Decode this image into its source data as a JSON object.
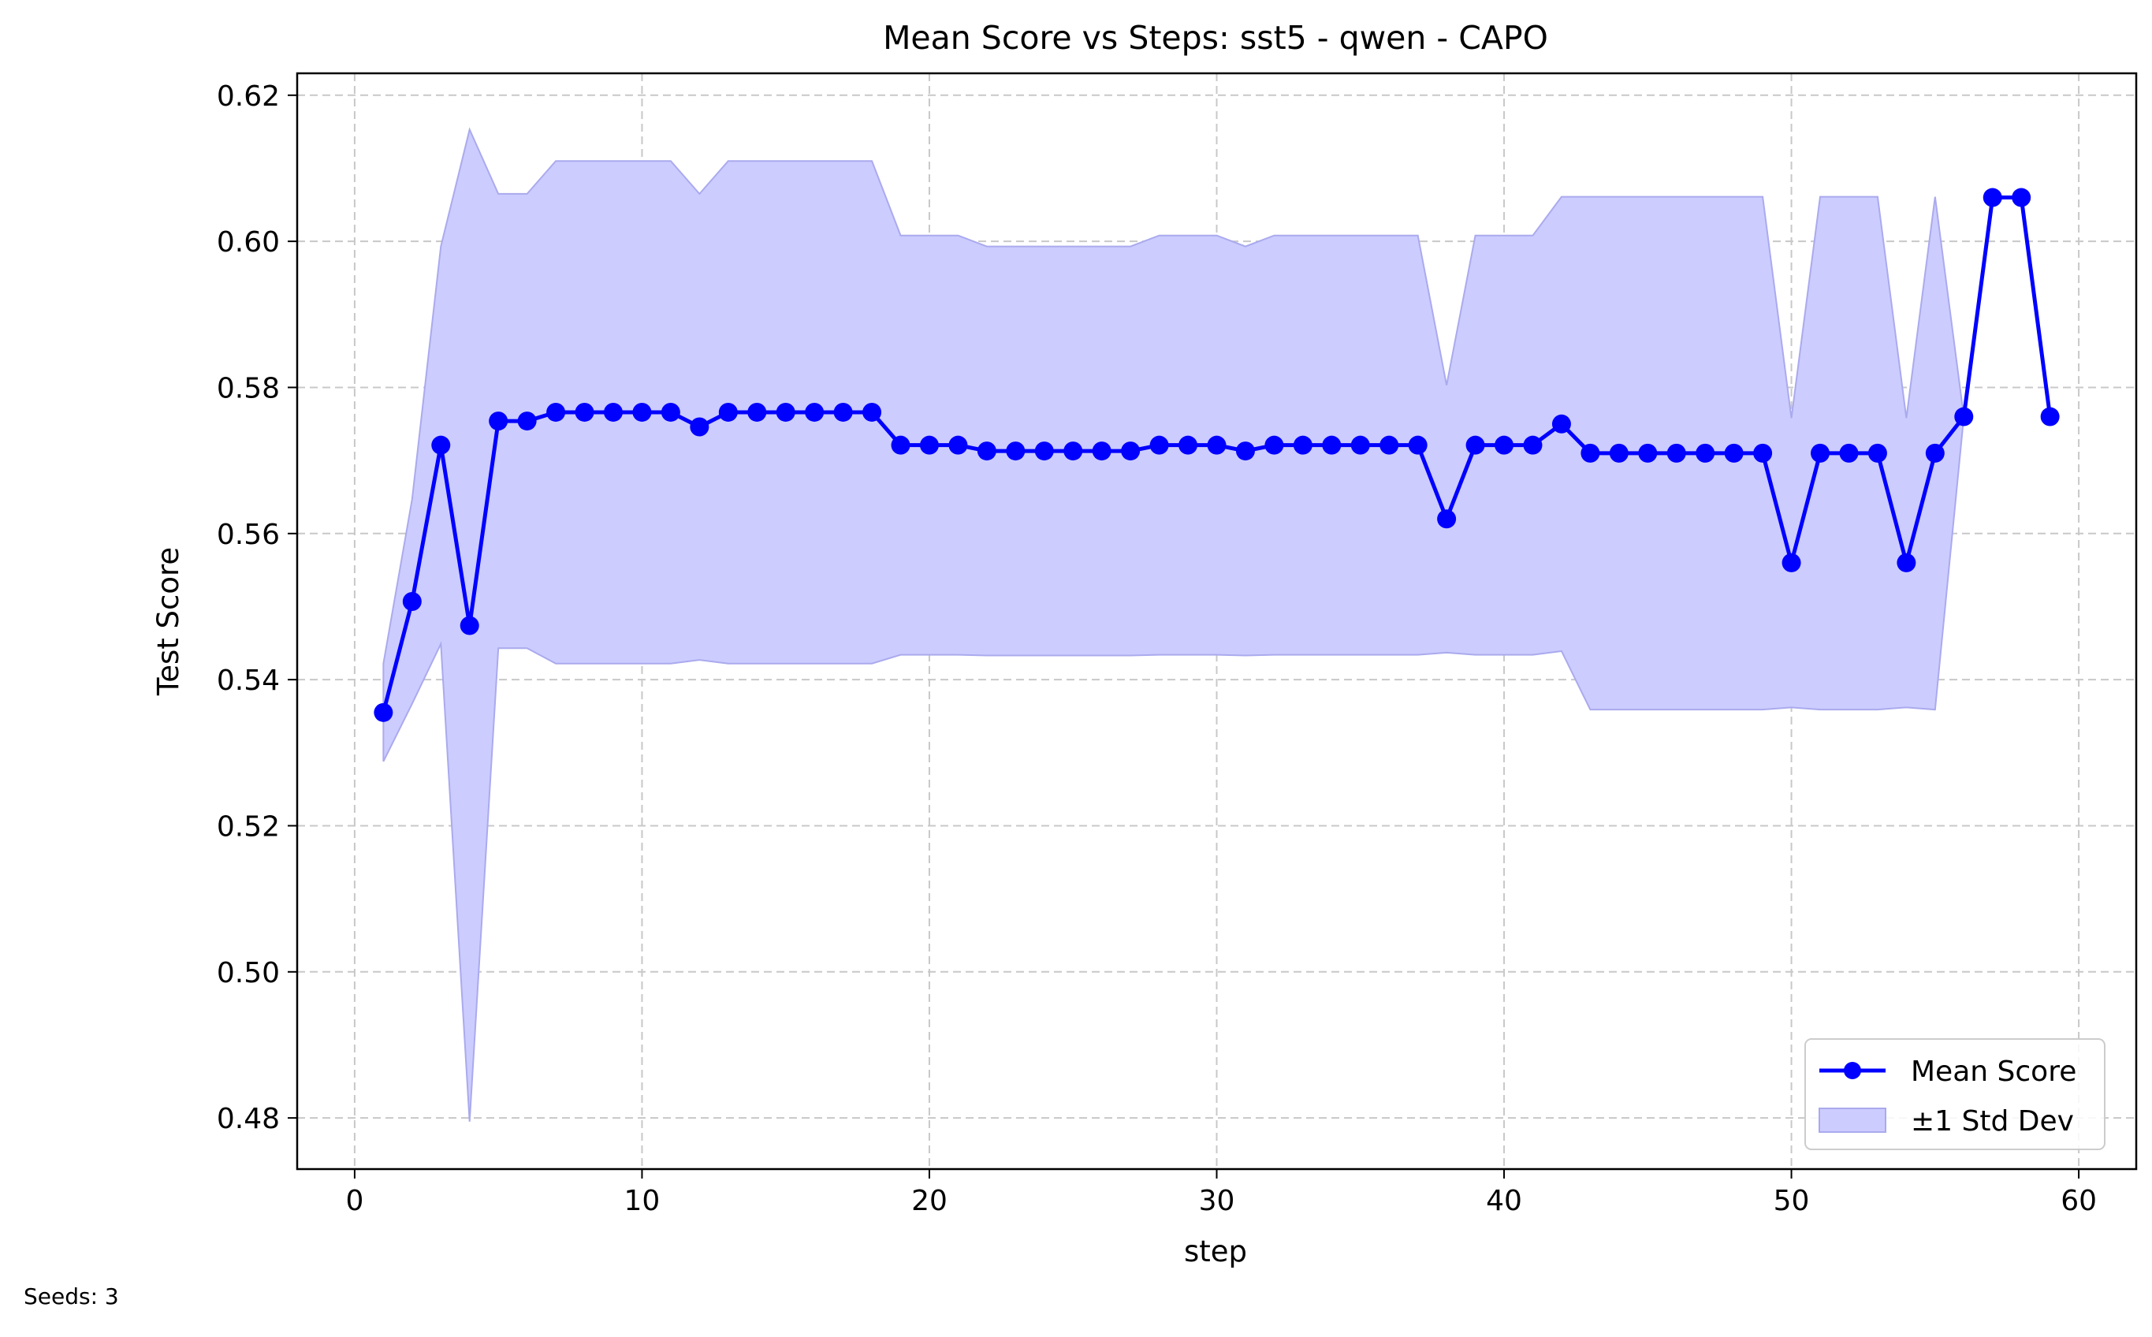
{
  "chart_data": {
    "type": "line",
    "title": "Mean Score vs Steps: sst5 - qwen - CAPO",
    "xlabel": "step",
    "ylabel": "Test Score",
    "xlim": [
      -2,
      62
    ],
    "ylim": [
      0.473,
      0.623
    ],
    "xticks": [
      0,
      10,
      20,
      30,
      40,
      50,
      60
    ],
    "yticks": [
      0.48,
      0.5,
      0.52,
      0.54,
      0.56,
      0.58,
      0.6,
      0.62
    ],
    "grid": true,
    "legend_position": "bottom-right",
    "x": [
      1,
      2,
      3,
      4,
      5,
      6,
      7,
      8,
      9,
      10,
      11,
      12,
      13,
      14,
      15,
      16,
      17,
      18,
      19,
      20,
      21,
      22,
      23,
      24,
      25,
      26,
      27,
      28,
      29,
      30,
      31,
      32,
      33,
      34,
      35,
      36,
      37,
      38,
      39,
      40,
      41,
      42,
      43,
      44,
      45,
      46,
      47,
      48,
      49,
      50,
      51,
      52,
      53,
      54,
      55,
      56,
      57,
      58,
      59
    ],
    "series": [
      {
        "name": "Mean Score",
        "color": "#0000ff",
        "values": [
          0.5355,
          0.5507,
          0.5721,
          0.5474,
          0.5754,
          0.5754,
          0.5766,
          0.5766,
          0.5766,
          0.5766,
          0.5766,
          0.5746,
          0.5766,
          0.5766,
          0.5766,
          0.5766,
          0.5766,
          0.5766,
          0.5721,
          0.5721,
          0.5721,
          0.5713,
          0.5713,
          0.5713,
          0.5713,
          0.5713,
          0.5713,
          0.5721,
          0.5721,
          0.5721,
          0.5713,
          0.5721,
          0.5721,
          0.5721,
          0.5721,
          0.5721,
          0.5721,
          0.562,
          0.5721,
          0.5721,
          0.5721,
          0.575,
          0.571,
          0.571,
          0.571,
          0.571,
          0.571,
          0.571,
          0.571,
          0.556,
          0.571,
          0.571,
          0.571,
          0.556,
          0.571,
          0.576,
          0.606,
          0.606,
          0.576
        ]
      }
    ],
    "band": {
      "name": "±1 Std Dev",
      "color": "#ccccff",
      "upper": [
        0.5422,
        0.5647,
        0.5993,
        0.6153,
        0.6065,
        0.6065,
        0.611,
        0.611,
        0.611,
        0.611,
        0.611,
        0.6065,
        0.611,
        0.611,
        0.611,
        0.611,
        0.611,
        0.611,
        0.6008,
        0.6008,
        0.6008,
        0.5993,
        0.5993,
        0.5993,
        0.5993,
        0.5993,
        0.5993,
        0.6008,
        0.6008,
        0.6008,
        0.5993,
        0.6008,
        0.6008,
        0.6008,
        0.6008,
        0.6008,
        0.6008,
        0.5803,
        0.6008,
        0.6008,
        0.6008,
        0.6061,
        0.6061,
        0.6061,
        0.6061,
        0.6061,
        0.6061,
        0.6061,
        0.6061,
        0.5758,
        0.6061,
        0.6061,
        0.6061,
        0.5758,
        0.6061,
        0.576,
        0.606,
        0.606,
        0.576
      ],
      "lower": [
        0.5288,
        0.5367,
        0.5449,
        0.4795,
        0.5443,
        0.5443,
        0.5422,
        0.5422,
        0.5422,
        0.5422,
        0.5422,
        0.5427,
        0.5422,
        0.5422,
        0.5422,
        0.5422,
        0.5422,
        0.5422,
        0.5434,
        0.5434,
        0.5434,
        0.5433,
        0.5433,
        0.5433,
        0.5433,
        0.5433,
        0.5433,
        0.5434,
        0.5434,
        0.5434,
        0.5433,
        0.5434,
        0.5434,
        0.5434,
        0.5434,
        0.5434,
        0.5434,
        0.5437,
        0.5434,
        0.5434,
        0.5434,
        0.5439,
        0.5359,
        0.5359,
        0.5359,
        0.5359,
        0.5359,
        0.5359,
        0.5359,
        0.5362,
        0.5359,
        0.5359,
        0.5359,
        0.5362,
        0.5359,
        0.576,
        0.606,
        0.606,
        0.576
      ]
    }
  },
  "footnote": "Seeds: 3"
}
